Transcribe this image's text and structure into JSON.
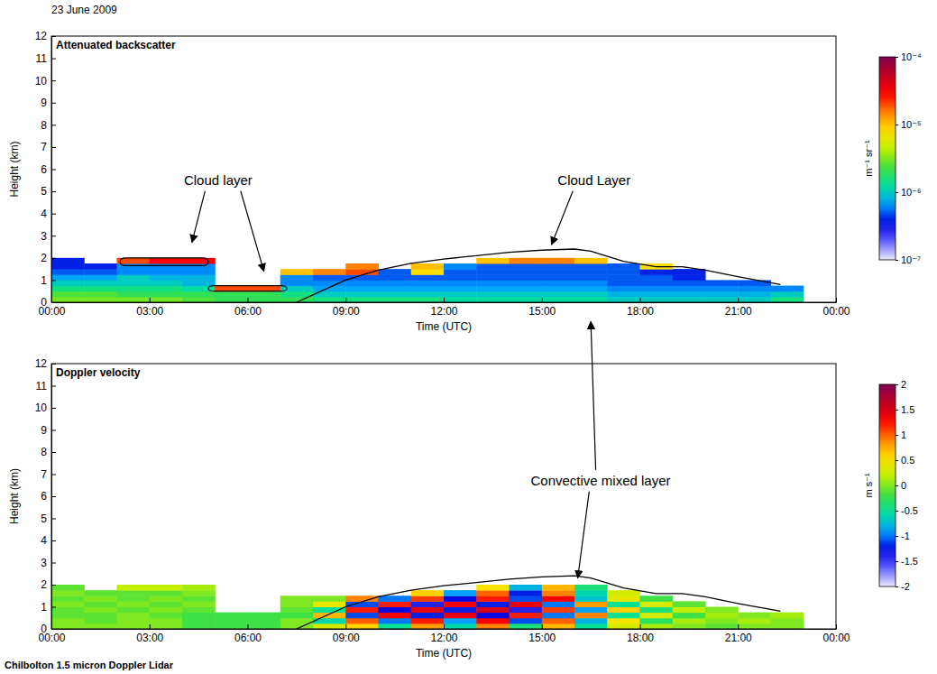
{
  "header": "23 June 2009",
  "footer": "Chilbolton 1.5 micron Doppler Lidar",
  "chart_data": [
    {
      "type": "heatmap",
      "title": "Attenuated backscatter",
      "x_label": "Time (UTC)",
      "y_label": "Height (km)",
      "xlim": [
        0,
        24
      ],
      "xticks": [
        {
          "value": 0,
          "label": "00:00"
        },
        {
          "value": 3,
          "label": "03:00"
        },
        {
          "value": 6,
          "label": "06:00"
        },
        {
          "value": 9,
          "label": "09:00"
        },
        {
          "value": 12,
          "label": "12:00"
        },
        {
          "value": 15,
          "label": "15:00"
        },
        {
          "value": 18,
          "label": "18:00"
        },
        {
          "value": 21,
          "label": "21:00"
        },
        {
          "value": 24,
          "label": "00:00"
        }
      ],
      "ylim": [
        0,
        12
      ],
      "yticks": [
        0,
        1,
        2,
        3,
        4,
        5,
        6,
        7,
        8,
        9,
        10,
        11,
        12
      ],
      "x_bins": [
        0,
        1,
        2,
        3,
        4,
        5,
        6,
        7,
        8,
        9,
        10,
        11,
        12,
        13,
        14,
        15,
        16,
        17,
        18,
        19,
        20,
        21,
        22,
        23
      ],
      "y_bins": [
        0,
        0.25,
        0.5,
        0.75,
        1.0,
        1.25,
        1.5,
        1.75,
        2.0
      ],
      "cells": [
        [
          3e-06,
          3e-06,
          3e-06,
          3e-06,
          2.5e-06,
          2e-06,
          2e-06,
          2e-06,
          1.5e-06,
          1.5e-06,
          1.5e-06,
          1.5e-06,
          1.2e-06,
          1.2e-06,
          1.2e-06,
          1.2e-06,
          1.2e-06,
          1e-06,
          1e-06,
          1e-06,
          1e-06,
          1e-06,
          1.5e-06
        ],
        [
          2.5e-06,
          2.5e-06,
          2e-06,
          2e-06,
          2e-06,
          2e-06,
          2e-06,
          1.5e-06,
          1e-06,
          1e-06,
          1e-06,
          1e-06,
          1e-06,
          1e-06,
          1e-06,
          1e-06,
          1e-06,
          8e-07,
          8e-07,
          8e-07,
          8e-07,
          8e-07,
          1e-06
        ],
        [
          1.5e-06,
          1.5e-06,
          1.5e-06,
          1.5e-06,
          1.2e-06,
          2e-05,
          2e-05,
          1e-06,
          7e-07,
          7e-07,
          7e-07,
          7e-07,
          7e-07,
          7e-07,
          7e-07,
          7e-07,
          7e-07,
          6e-07,
          6e-07,
          6e-07,
          6e-07,
          6e-07,
          6e-07
        ],
        [
          1e-06,
          1e-06,
          1e-06,
          1e-06,
          8e-07,
          null,
          null,
          6e-07,
          6e-07,
          6e-07,
          6e-07,
          6e-07,
          6e-07,
          6e-07,
          6e-07,
          6e-07,
          6e-07,
          5e-07,
          5e-07,
          5e-07,
          5e-07,
          5e-07,
          null
        ],
        [
          7e-07,
          7e-07,
          1e-06,
          8e-07,
          8e-07,
          null,
          null,
          6e-07,
          5e-07,
          5e-07,
          5e-07,
          5e-07,
          5e-07,
          5e-07,
          5e-07,
          5e-07,
          5e-07,
          5e-07,
          5e-07,
          4e-07,
          null,
          null,
          null
        ],
        [
          5e-07,
          5e-07,
          6e-07,
          6e-07,
          6e-07,
          null,
          null,
          1e-05,
          1.5e-05,
          2e-05,
          5e-07,
          8e-06,
          5e-07,
          5e-07,
          5e-07,
          5e-07,
          5e-07,
          5e-07,
          4e-07,
          4e-07,
          null,
          null,
          null
        ],
        [
          4e-07,
          4e-07,
          6e-07,
          6e-07,
          6e-07,
          null,
          null,
          null,
          null,
          1.5e-05,
          null,
          1e-05,
          6e-07,
          5e-07,
          5e-07,
          5e-07,
          5e-07,
          5e-07,
          8e-06,
          null,
          null,
          null,
          null
        ],
        [
          4e-07,
          null,
          2e-05,
          3e-05,
          3e-05,
          null,
          null,
          null,
          null,
          null,
          null,
          null,
          null,
          1e-05,
          1.5e-05,
          1.5e-05,
          1e-05,
          null,
          null,
          null,
          null,
          null,
          null
        ]
      ],
      "colorbar": {
        "label": "m⁻¹ sr⁻¹",
        "log": true,
        "range": [
          1e-07,
          0.0001
        ],
        "ticks": [
          {
            "value": 1e-07,
            "label": "10⁻⁷"
          },
          {
            "value": 1e-06,
            "label": "10⁻⁶"
          },
          {
            "value": 1e-05,
            "label": "10⁻⁵"
          },
          {
            "value": 0.0001,
            "label": "10⁻⁴"
          }
        ]
      },
      "series": [
        {
          "type": "line",
          "color": "#000000",
          "x": [
            7.5,
            9,
            10,
            11,
            12,
            13,
            14,
            15,
            16,
            16.5,
            17.5,
            18.5,
            19.3,
            20,
            21,
            22.3
          ],
          "values": [
            0,
            1.0,
            1.45,
            1.75,
            1.95,
            2.1,
            2.25,
            2.35,
            2.4,
            2.3,
            1.85,
            1.6,
            1.6,
            1.45,
            1.15,
            0.8
          ]
        }
      ],
      "boxes": [
        {
          "x": [
            2.1,
            4.8
          ],
          "y": [
            1.65,
            2.0
          ]
        },
        {
          "x": [
            4.8,
            7.2
          ],
          "y": [
            0.5,
            0.75
          ]
        }
      ],
      "annotations": [
        {
          "text": "Cloud layer",
          "x": 5.1,
          "y": 5.3,
          "arrows": [
            [
              4.3,
              2.7
            ],
            [
              6.5,
              1.4
            ]
          ]
        },
        {
          "text": "Cloud Layer",
          "x": 16.6,
          "y": 5.3,
          "arrows": [
            [
              15.3,
              2.6
            ]
          ]
        }
      ]
    },
    {
      "type": "heatmap",
      "title": "Doppler velocity",
      "x_label": "Time (UTC)",
      "y_label": "Height (km)",
      "xlim": [
        0,
        24
      ],
      "xticks": [
        {
          "value": 0,
          "label": "00:00"
        },
        {
          "value": 3,
          "label": "03:00"
        },
        {
          "value": 6,
          "label": "06:00"
        },
        {
          "value": 9,
          "label": "09:00"
        },
        {
          "value": 12,
          "label": "12:00"
        },
        {
          "value": 15,
          "label": "15:00"
        },
        {
          "value": 18,
          "label": "18:00"
        },
        {
          "value": 21,
          "label": "21:00"
        },
        {
          "value": 24,
          "label": "00:00"
        }
      ],
      "ylim": [
        0,
        12
      ],
      "yticks": [
        0,
        1,
        2,
        3,
        4,
        5,
        6,
        7,
        8,
        9,
        10,
        11,
        12
      ],
      "x_bins": [
        0,
        1,
        2,
        3,
        4,
        5,
        6,
        7,
        8,
        9,
        10,
        11,
        12,
        13,
        14,
        15,
        16,
        17,
        18,
        19,
        20,
        21,
        22,
        23
      ],
      "y_bins": [
        0,
        0.25,
        0.5,
        0.75,
        1.0,
        1.25,
        1.5,
        1.75,
        2.0
      ],
      "cells": [
        [
          0,
          0,
          0,
          0,
          -0.2,
          -0.2,
          -0.2,
          0,
          0.3,
          0.6,
          -0.5,
          0.8,
          -0.6,
          0.9,
          -0.4,
          0.7,
          -0.5,
          0.3,
          0.1,
          0,
          -0.1,
          0,
          0
        ],
        [
          0,
          -0.1,
          0,
          0,
          -0.2,
          -0.2,
          -0.2,
          0,
          -0.6,
          1.0,
          -1.0,
          1.2,
          -0.9,
          1.3,
          -1.1,
          1.0,
          -0.8,
          0.5,
          -0.3,
          0.1,
          0,
          0.1,
          0
        ],
        [
          -0.1,
          -0.1,
          0,
          -0.1,
          -0.2,
          -0.2,
          -0.2,
          -0.2,
          0.7,
          -1.1,
          1.3,
          -1.2,
          1.4,
          -1.3,
          1.2,
          -1.0,
          0.9,
          -0.5,
          0.3,
          -0.2,
          0.1,
          0,
          0.1
        ],
        [
          -0.1,
          0,
          -0.1,
          0,
          -0.1,
          null,
          null,
          -0.1,
          -0.5,
          1.2,
          -1.3,
          1.4,
          -1.2,
          1.5,
          -1.4,
          1.1,
          -0.9,
          0.6,
          -0.4,
          0.2,
          0,
          null,
          null
        ],
        [
          0,
          -0.1,
          0,
          -0.1,
          0,
          null,
          null,
          0,
          0.4,
          -1.1,
          1.2,
          -1.4,
          1.3,
          -1.2,
          1.4,
          -1.0,
          0.8,
          -0.5,
          0.3,
          -0.1,
          null,
          null,
          null
        ],
        [
          -0.1,
          0,
          -0.1,
          0,
          -0.1,
          null,
          null,
          0,
          0,
          0.9,
          -1.0,
          1.1,
          -1.3,
          1.2,
          -1.1,
          1.3,
          -0.7,
          0.4,
          -0.2,
          null,
          null,
          null,
          null
        ],
        [
          0,
          -0.1,
          -0.1,
          -0.1,
          0,
          null,
          null,
          null,
          null,
          null,
          null,
          0.6,
          -0.9,
          1.0,
          -1.2,
          0.9,
          -0.6,
          0.3,
          null,
          null,
          null,
          null,
          null
        ],
        [
          -0.1,
          null,
          0.2,
          0.2,
          0.1,
          null,
          null,
          null,
          null,
          null,
          null,
          null,
          null,
          0.5,
          -0.8,
          0.7,
          -0.4,
          null,
          null,
          null,
          null,
          null,
          null
        ]
      ],
      "colorbar": {
        "label": "m s⁻¹",
        "log": false,
        "range": [
          -2,
          2
        ],
        "ticks": [
          -2,
          -1.5,
          -1,
          -0.5,
          0,
          0.5,
          1,
          1.5,
          2
        ]
      },
      "series": [
        {
          "type": "line",
          "color": "#000000",
          "x": [
            7.5,
            9,
            10,
            11,
            12,
            13,
            14,
            15,
            16,
            16.5,
            17.5,
            18.5,
            19.3,
            20,
            21,
            22.3
          ],
          "values": [
            0,
            1.0,
            1.45,
            1.75,
            1.95,
            2.1,
            2.25,
            2.35,
            2.4,
            2.3,
            1.85,
            1.6,
            1.6,
            1.45,
            1.15,
            0.8
          ]
        }
      ],
      "annotations": [
        {
          "text": "Convective mixed layer",
          "x": 16.8,
          "y": 6.5,
          "arrows": [
            [
              16.1,
              2.3
            ],
            [
              16.5,
              13.9
            ]
          ]
        }
      ]
    }
  ]
}
